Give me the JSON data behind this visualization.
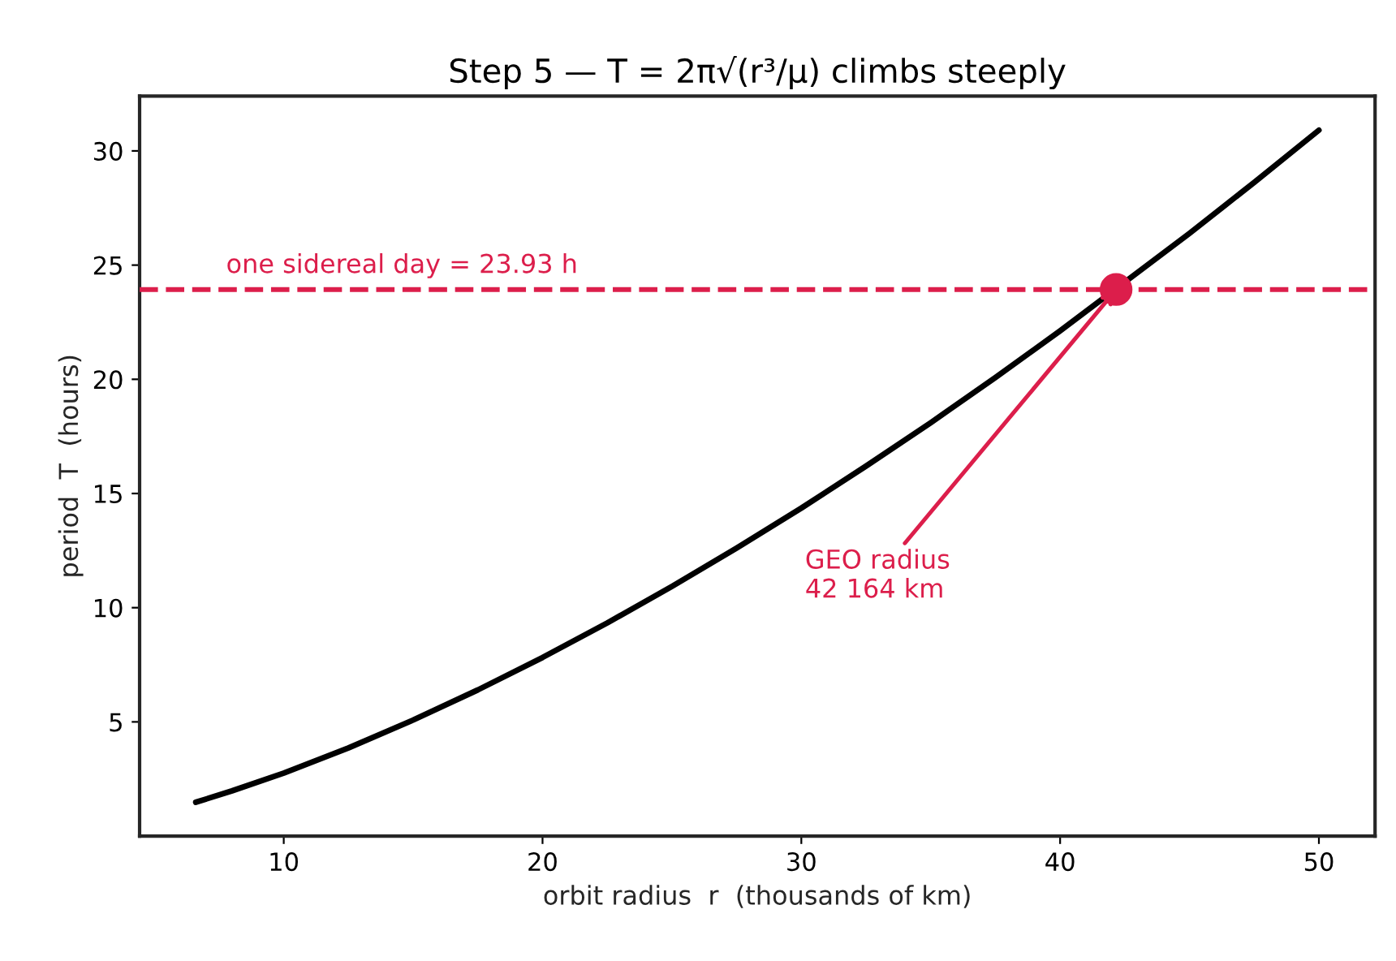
{
  "chart_data": {
    "type": "line",
    "title": "Step 5 — T = 2π√(r³/μ) climbs steeply",
    "xlabel": "orbit radius  r  (thousands of km)",
    "ylabel": "period  T  (hours)",
    "series": [
      {
        "color": "#000000",
        "x": [
          6.6,
          8,
          10,
          12.5,
          15,
          17.5,
          20,
          22.5,
          25,
          27.5,
          30,
          32.5,
          35,
          37.5,
          40,
          45,
          47.5,
          50
        ],
        "values": [
          1.48,
          1.98,
          2.76,
          3.86,
          5.08,
          6.4,
          7.82,
          9.33,
          10.93,
          12.61,
          14.36,
          16.2,
          18.1,
          20.08,
          22.12,
          26.39,
          28.62,
          30.91
        ]
      },
      {
        "type": "scatter",
        "color": "#dc1e4b",
        "x": [
          42.164
        ],
        "values": [
          23.93
        ]
      }
    ],
    "ref_lines": [
      {
        "axis": "y",
        "value": 23.93,
        "label": "one sidereal day = 23.93 h",
        "color": "#dc1e4b",
        "line_style": "dashed"
      }
    ],
    "annotations": [
      {
        "text": "GEO radius\n42 164 km",
        "x": 42.164,
        "y": 23.93
      }
    ],
    "xlim": [
      4.43,
      52.17
    ],
    "ylim": [
      0,
      32.4
    ],
    "xticks": [
      10,
      20,
      30,
      40,
      50
    ],
    "yticks": [
      5,
      10,
      15,
      20,
      25,
      30
    ],
    "grid": false
  }
}
